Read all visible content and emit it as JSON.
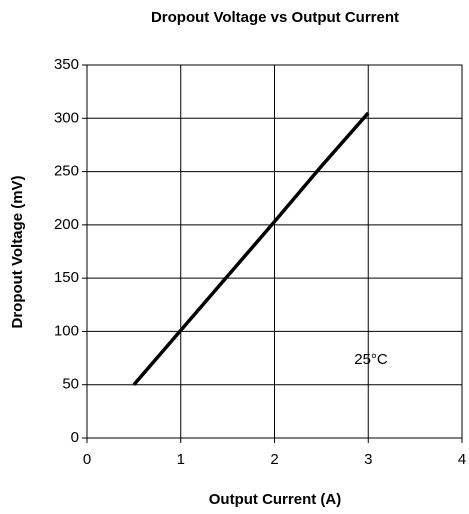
{
  "chart_data": {
    "type": "line",
    "title": "Dropout Voltage vs Output Current",
    "x_label": "Output Current (A)",
    "y_label": "Dropout Voltage (mV)",
    "annotation": "25°C",
    "x": [
      0.5,
      1,
      1.5,
      2,
      2.5,
      3
    ],
    "series": [
      {
        "name": "25°C",
        "color": "#000000",
        "values": [
          50,
          101,
          152,
          203,
          255,
          305
        ]
      }
    ],
    "xlim": [
      0,
      4
    ],
    "xticks": [
      0,
      1,
      2,
      3,
      4
    ],
    "ylim": [
      0,
      350
    ],
    "yticks": [
      0,
      50,
      100,
      150,
      200,
      250,
      300,
      350
    ],
    "grid": true
  }
}
